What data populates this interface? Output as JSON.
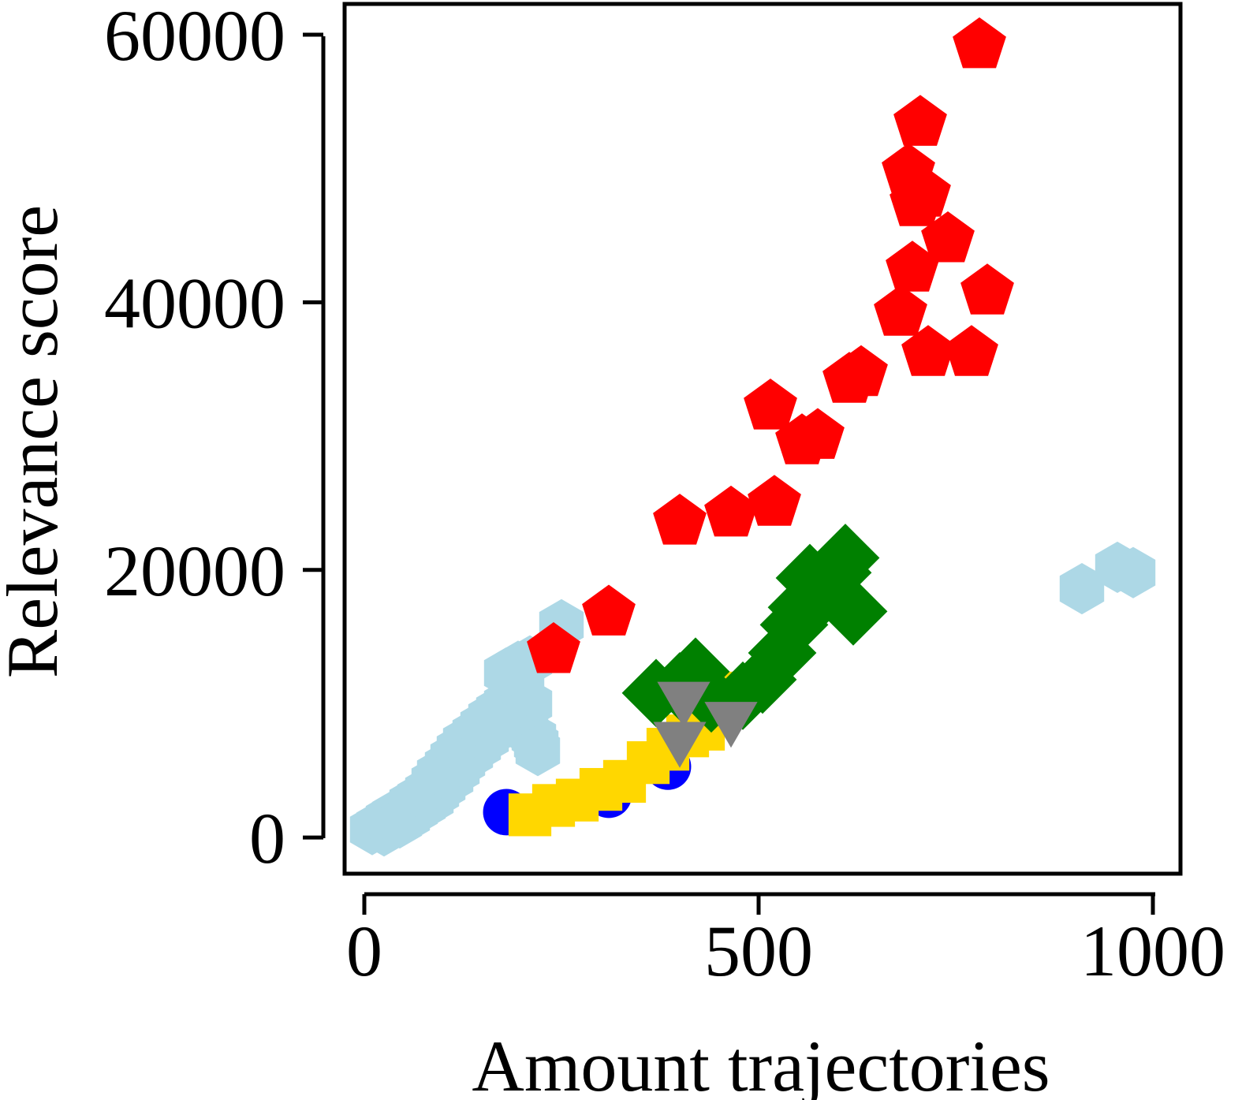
{
  "chart_data": {
    "type": "scatter",
    "title": "",
    "xlabel": "Amount trajectories",
    "ylabel": "Relevance score",
    "xlim": [
      -25,
      1035
    ],
    "ylim": [
      -2700,
      62300
    ],
    "xticks": [
      0,
      500,
      1000
    ],
    "yticks": [
      0,
      20000,
      40000,
      60000
    ],
    "xtick_labels": [
      "0",
      "500",
      "1000"
    ],
    "ytick_labels": [
      "0",
      "20000",
      "40000",
      "60000"
    ],
    "grid": false,
    "legend": "none",
    "series": [
      {
        "marker": "hexagon",
        "color": "#add8e6",
        "points": [
          [
            10,
            600
          ],
          [
            18,
            900
          ],
          [
            25,
            500
          ],
          [
            30,
            1400
          ],
          [
            35,
            900
          ],
          [
            38,
            1700
          ],
          [
            45,
            1100
          ],
          [
            50,
            2000
          ],
          [
            55,
            1500
          ],
          [
            60,
            2600
          ],
          [
            65,
            2000
          ],
          [
            70,
            3000
          ],
          [
            75,
            2400
          ],
          [
            80,
            3500
          ],
          [
            85,
            2800
          ],
          [
            88,
            4200
          ],
          [
            92,
            3300
          ],
          [
            95,
            4800
          ],
          [
            100,
            3800
          ],
          [
            105,
            5400
          ],
          [
            110,
            4400
          ],
          [
            112,
            6000
          ],
          [
            118,
            5000
          ],
          [
            120,
            6600
          ],
          [
            125,
            5600
          ],
          [
            128,
            7200
          ],
          [
            135,
            6200
          ],
          [
            140,
            7800
          ],
          [
            145,
            6800
          ],
          [
            150,
            8400
          ],
          [
            155,
            7400
          ],
          [
            160,
            9000
          ],
          [
            165,
            8000
          ],
          [
            170,
            9500
          ],
          [
            175,
            8500
          ],
          [
            180,
            10000
          ],
          [
            185,
            9000
          ],
          [
            190,
            10700
          ],
          [
            195,
            9500
          ],
          [
            200,
            11200
          ],
          [
            205,
            8000
          ],
          [
            210,
            10000
          ],
          [
            215,
            7500
          ],
          [
            218,
            7000
          ],
          [
            220,
            6500
          ],
          [
            180,
            12300
          ],
          [
            195,
            12800
          ],
          [
            210,
            13200
          ],
          [
            250,
            15900
          ],
          [
            910,
            18600
          ],
          [
            955,
            20200
          ],
          [
            975,
            19800
          ]
        ]
      },
      {
        "marker": "circle",
        "color": "#0000ff",
        "points": [
          [
            180,
            1900
          ],
          [
            310,
            3200
          ],
          [
            385,
            5300
          ]
        ]
      },
      {
        "marker": "square",
        "color": "#ffd700",
        "points": [
          [
            210,
            1700
          ],
          [
            240,
            2400
          ],
          [
            270,
            2800
          ],
          [
            300,
            3600
          ],
          [
            330,
            4200
          ],
          [
            360,
            5600
          ],
          [
            385,
            6600
          ],
          [
            410,
            7600
          ],
          [
            430,
            8100
          ],
          [
            445,
            9300
          ],
          [
            460,
            10100
          ],
          [
            470,
            10800
          ]
        ]
      },
      {
        "marker": "diamond",
        "color": "#008000",
        "points": [
          [
            370,
            10800
          ],
          [
            400,
            11300
          ],
          [
            420,
            12400
          ],
          [
            440,
            10400
          ],
          [
            480,
            10600
          ],
          [
            505,
            11800
          ],
          [
            530,
            13800
          ],
          [
            545,
            15900
          ],
          [
            555,
            17200
          ],
          [
            565,
            19400
          ],
          [
            580,
            18200
          ],
          [
            600,
            19800
          ],
          [
            610,
            20900
          ],
          [
            620,
            16900
          ]
        ]
      },
      {
        "marker": "triangle-down",
        "color": "#808080",
        "points": [
          [
            405,
            10500
          ],
          [
            400,
            7500
          ],
          [
            465,
            9000
          ]
        ]
      },
      {
        "marker": "pentagon",
        "color": "#ff0000",
        "points": [
          [
            240,
            14000
          ],
          [
            310,
            16800
          ],
          [
            400,
            23600
          ],
          [
            465,
            24200
          ],
          [
            515,
            32200
          ],
          [
            520,
            25000
          ],
          [
            555,
            29600
          ],
          [
            575,
            30000
          ],
          [
            615,
            34200
          ],
          [
            630,
            34700
          ],
          [
            680,
            39200
          ],
          [
            690,
            49800
          ],
          [
            695,
            42500
          ],
          [
            700,
            47400
          ],
          [
            705,
            53400
          ],
          [
            710,
            48100
          ],
          [
            715,
            36200
          ],
          [
            740,
            44700
          ],
          [
            770,
            36200
          ],
          [
            780,
            59200
          ],
          [
            790,
            40800
          ]
        ]
      }
    ]
  }
}
